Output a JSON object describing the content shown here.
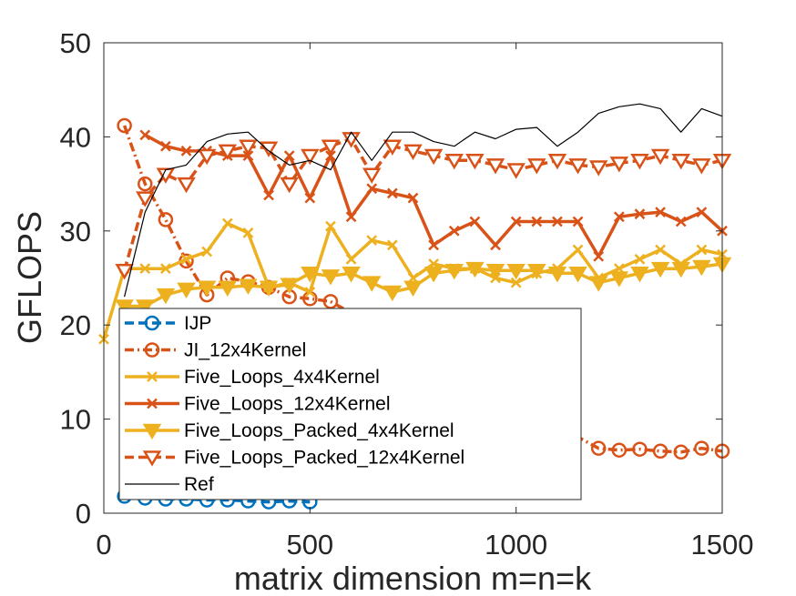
{
  "chart_data": {
    "type": "line",
    "xlabel": "matrix dimension m=n=k",
    "ylabel": "GFLOPS",
    "xlim": [
      0,
      1500
    ],
    "ylim": [
      0,
      50
    ],
    "xticks": [
      0,
      500,
      1000,
      1500
    ],
    "xtick_labels": [
      "0",
      "500",
      "1000",
      "1500"
    ],
    "yticks": [
      0,
      10,
      20,
      30,
      40,
      50
    ],
    "ytick_labels": [
      "0",
      "10",
      "20",
      "30",
      "40",
      "50"
    ],
    "grid": false,
    "legend_position": "lower-left",
    "series": [
      {
        "name": "IJP",
        "color": "#0072bd",
        "line_style": "dashed",
        "marker": "circle",
        "x": [
          50,
          100,
          150,
          200,
          250,
          300,
          350,
          400,
          450,
          500
        ],
        "y": [
          1.8,
          1.6,
          1.5,
          1.5,
          1.4,
          1.4,
          1.3,
          1.2,
          1.3,
          1.2
        ]
      },
      {
        "name": "JI_12x4Kernel",
        "color": "#d95319",
        "line_style": "dashdot",
        "marker": "circle",
        "x": [
          50,
          100,
          150,
          200,
          250,
          300,
          350,
          400,
          450,
          500,
          550,
          1200,
          1250,
          1300,
          1350,
          1400,
          1450,
          1500
        ],
        "y": [
          41.2,
          35.0,
          31.2,
          26.8,
          23.2,
          25.0,
          24.6,
          24.0,
          23.0,
          22.8,
          22.5,
          6.9,
          6.7,
          6.8,
          6.6,
          6.5,
          6.9,
          6.6
        ]
      },
      {
        "name": "Five_Loops_4x4Kernel",
        "color": "#edb120",
        "line_style": "solid",
        "marker": "x",
        "x": [
          0,
          50,
          100,
          150,
          200,
          250,
          300,
          350,
          400,
          450,
          500,
          550,
          600,
          650,
          700,
          750,
          800,
          850,
          900,
          950,
          1000,
          1050,
          1100,
          1150,
          1200,
          1250,
          1300,
          1350,
          1400,
          1450,
          1500
        ],
        "y": [
          18.5,
          26.0,
          26.0,
          26.0,
          27.0,
          27.8,
          30.8,
          29.8,
          24.0,
          24.5,
          23.5,
          30.5,
          27.0,
          29.0,
          28.5,
          25.0,
          26.5,
          26.0,
          26.0,
          25.0,
          24.5,
          25.5,
          26.0,
          28.0,
          25.0,
          26.0,
          27.0,
          28.0,
          26.5,
          28.0,
          27.5
        ]
      },
      {
        "name": "Five_Loops_12x4Kernel",
        "color": "#d95319",
        "line_style": "solid",
        "marker": "x",
        "x": [
          100,
          150,
          200,
          250,
          300,
          350,
          400,
          450,
          500,
          550,
          600,
          650,
          700,
          750,
          800,
          850,
          900,
          950,
          1000,
          1050,
          1100,
          1150,
          1200,
          1250,
          1300,
          1350,
          1400,
          1450,
          1500
        ],
        "y": [
          40.2,
          39.0,
          38.5,
          38.5,
          38.0,
          38.0,
          33.8,
          38.0,
          33.5,
          38.0,
          31.5,
          34.5,
          34.0,
          33.5,
          28.5,
          30.0,
          31.0,
          28.5,
          31.0,
          31.0,
          31.0,
          31.0,
          27.3,
          31.5,
          31.8,
          32.0,
          31.0,
          32.0,
          30.0
        ]
      },
      {
        "name": "Five_Loops_Packed_4x4Kernel",
        "color": "#edb120",
        "line_style": "solid",
        "marker": "triangle-down-filled",
        "x": [
          50,
          100,
          150,
          200,
          250,
          300,
          350,
          400,
          450,
          500,
          550,
          600,
          650,
          700,
          750,
          800,
          850,
          900,
          950,
          1000,
          1050,
          1100,
          1150,
          1200,
          1250,
          1300,
          1350,
          1400,
          1450,
          1500
        ],
        "y": [
          22.0,
          22.0,
          23.2,
          23.8,
          24.0,
          24.0,
          24.2,
          24.0,
          24.3,
          25.5,
          25.2,
          25.5,
          24.5,
          23.5,
          24.0,
          25.5,
          25.8,
          26.0,
          25.8,
          25.8,
          25.8,
          25.5,
          25.5,
          24.5,
          25.0,
          25.5,
          26.0,
          26.0,
          26.2,
          26.5
        ]
      },
      {
        "name": "Five_Loops_Packed_12x4Kernel",
        "color": "#d95319",
        "line_style": "dashed",
        "marker": "triangle-down",
        "x": [
          50,
          100,
          150,
          200,
          250,
          300,
          350,
          400,
          450,
          500,
          550,
          600,
          650,
          700,
          750,
          800,
          850,
          900,
          950,
          1000,
          1050,
          1100,
          1150,
          1200,
          1250,
          1300,
          1350,
          1400,
          1450,
          1500
        ],
        "y": [
          25.8,
          33.5,
          36.0,
          35.0,
          38.0,
          38.5,
          39.0,
          38.8,
          35.0,
          38.0,
          39.0,
          39.8,
          36.0,
          39.0,
          38.5,
          38.0,
          37.5,
          37.5,
          37.0,
          36.5,
          37.0,
          37.5,
          37.0,
          36.8,
          37.2,
          37.5,
          38.0,
          37.5,
          37.0,
          37.5
        ]
      },
      {
        "name": "Ref",
        "color": "#000000",
        "line_style": "solid",
        "marker": "none",
        "x": [
          50,
          100,
          150,
          200,
          250,
          300,
          350,
          400,
          450,
          500,
          550,
          600,
          650,
          700,
          750,
          800,
          850,
          900,
          950,
          1000,
          1050,
          1100,
          1150,
          1200,
          1250,
          1300,
          1350,
          1400,
          1450,
          1500
        ],
        "y": [
          23.0,
          32.0,
          36.5,
          37.0,
          39.5,
          40.3,
          40.5,
          38.5,
          37.0,
          37.5,
          36.5,
          40.5,
          37.5,
          40.5,
          40.5,
          39.5,
          39.0,
          40.5,
          39.8,
          40.8,
          41.0,
          39.0,
          40.5,
          42.5,
          43.2,
          43.5,
          43.0,
          40.5,
          43.0,
          42.2
        ]
      }
    ]
  }
}
